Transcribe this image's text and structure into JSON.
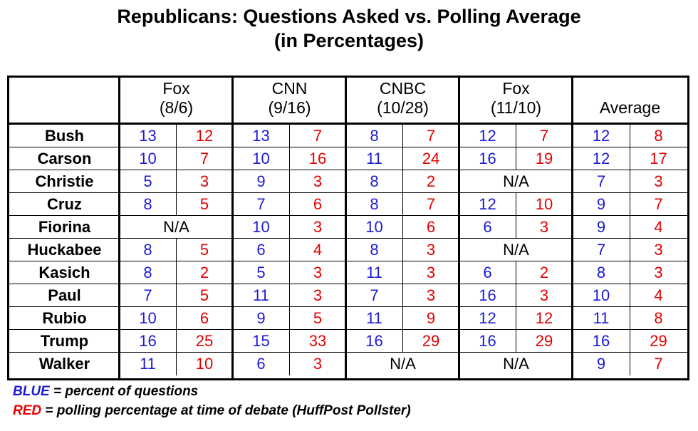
{
  "chart_data": {
    "type": "table",
    "title": [
      "Republicans: Questions Asked vs. Polling Average",
      "(in Percentages)"
    ],
    "columns": [
      {
        "label": [
          "Fox",
          "(8/6)"
        ]
      },
      {
        "label": [
          "CNN",
          "(9/16)"
        ]
      },
      {
        "label": [
          "CNBC",
          "(10/28)"
        ]
      },
      {
        "label": [
          "Fox",
          "(11/10)"
        ]
      },
      {
        "label": [
          "",
          "Average"
        ]
      }
    ],
    "na_label": "N/A",
    "rows": [
      {
        "name": "Bush",
        "values": [
          [
            13,
            12
          ],
          [
            13,
            7
          ],
          [
            8,
            7
          ],
          [
            12,
            7
          ],
          [
            12,
            8
          ]
        ]
      },
      {
        "name": "Carson",
        "values": [
          [
            10,
            7
          ],
          [
            10,
            16
          ],
          [
            11,
            24
          ],
          [
            16,
            19
          ],
          [
            12,
            17
          ]
        ]
      },
      {
        "name": "Christie",
        "values": [
          [
            5,
            3
          ],
          [
            9,
            3
          ],
          [
            8,
            2
          ],
          null,
          [
            7,
            3
          ]
        ]
      },
      {
        "name": "Cruz",
        "values": [
          [
            8,
            5
          ],
          [
            7,
            6
          ],
          [
            8,
            7
          ],
          [
            12,
            10
          ],
          [
            9,
            7
          ]
        ]
      },
      {
        "name": "Fiorina",
        "values": [
          null,
          [
            10,
            3
          ],
          [
            10,
            6
          ],
          [
            6,
            3
          ],
          [
            9,
            4
          ]
        ]
      },
      {
        "name": "Huckabee",
        "values": [
          [
            8,
            5
          ],
          [
            6,
            4
          ],
          [
            8,
            3
          ],
          null,
          [
            7,
            3
          ]
        ]
      },
      {
        "name": "Kasich",
        "values": [
          [
            8,
            2
          ],
          [
            5,
            3
          ],
          [
            11,
            3
          ],
          [
            6,
            2
          ],
          [
            8,
            3
          ]
        ]
      },
      {
        "name": "Paul",
        "values": [
          [
            7,
            5
          ],
          [
            11,
            3
          ],
          [
            7,
            3
          ],
          [
            16,
            3
          ],
          [
            10,
            4
          ]
        ]
      },
      {
        "name": "Rubio",
        "values": [
          [
            10,
            6
          ],
          [
            9,
            5
          ],
          [
            11,
            9
          ],
          [
            12,
            12
          ],
          [
            11,
            8
          ]
        ]
      },
      {
        "name": "Trump",
        "values": [
          [
            16,
            25
          ],
          [
            15,
            33
          ],
          [
            16,
            29
          ],
          [
            16,
            29
          ],
          [
            16,
            29
          ]
        ]
      },
      {
        "name": "Walker",
        "values": [
          [
            11,
            10
          ],
          [
            6,
            3
          ],
          null,
          null,
          [
            9,
            7
          ]
        ]
      }
    ],
    "legend": [
      {
        "key": "BLUE",
        "text": " = percent of questions",
        "color": "#1a1ad6"
      },
      {
        "key": "RED",
        "text": " = polling percentage at time of debate (HuffPost Pollster)",
        "color": "#e60000"
      }
    ],
    "colors": {
      "blue": "#1a1ad6",
      "red": "#e60000"
    }
  }
}
